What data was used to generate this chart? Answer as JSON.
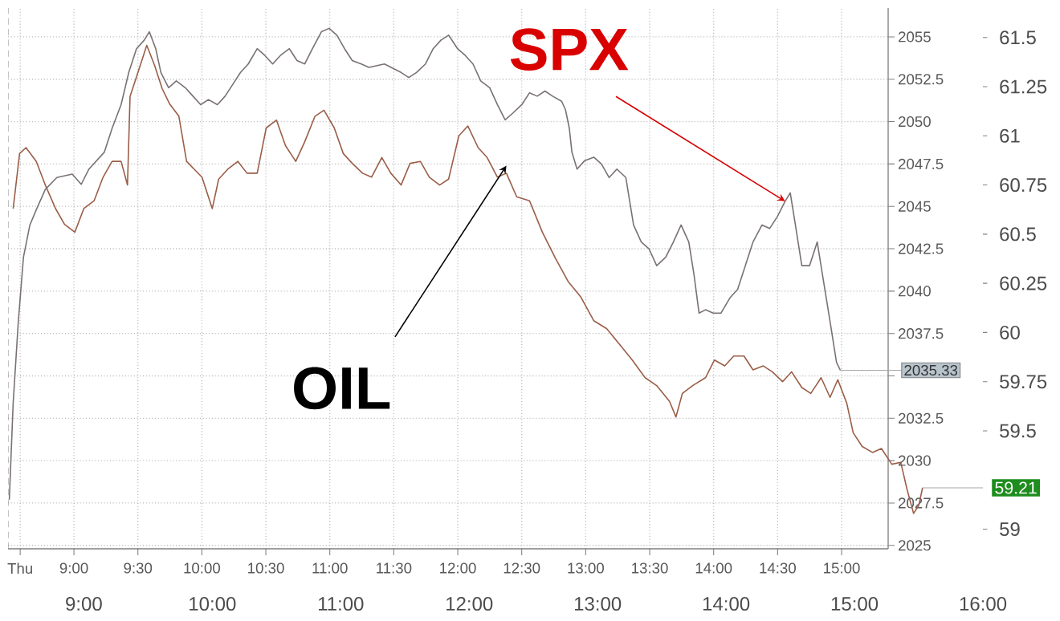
{
  "chart_data": {
    "type": "line",
    "xlim": [
      8.41,
      16.0
    ],
    "xticks": [
      {
        "value": 9,
        "label": "9:00"
      },
      {
        "value": 10,
        "label": "10:00"
      },
      {
        "value": 11,
        "label": "11:00"
      },
      {
        "value": 12,
        "label": "12:00"
      },
      {
        "value": 13,
        "label": "13:00"
      },
      {
        "value": 14,
        "label": "14:00"
      },
      {
        "value": 15,
        "label": "15:00"
      },
      {
        "value": 16,
        "label": "16:00"
      }
    ],
    "x2lim": [
      8.485,
      15.364
    ],
    "x2ticks": [
      {
        "value": 8.58,
        "label": "Thu"
      },
      {
        "value": 9,
        "label": "9:00"
      },
      {
        "value": 9.5,
        "label": "9:30"
      },
      {
        "value": 10,
        "label": "10:00"
      },
      {
        "value": 10.5,
        "label": "10:30"
      },
      {
        "value": 11,
        "label": "11:00"
      },
      {
        "value": 11.5,
        "label": "11:30"
      },
      {
        "value": 12,
        "label": "12:00"
      },
      {
        "value": 12.5,
        "label": "12:30"
      },
      {
        "value": 13,
        "label": "13:00"
      },
      {
        "value": 13.5,
        "label": "13:30"
      },
      {
        "value": 14,
        "label": "14:00"
      },
      {
        "value": 14.5,
        "label": "14:30"
      },
      {
        "value": 15,
        "label": "15:00"
      }
    ],
    "ylim": [
      2024.8,
      2056.7
    ],
    "yticks": [
      2025,
      2027.5,
      2030,
      2032.5,
      {
        "value": 2035,
        "label": null
      },
      2037.5,
      2040,
      2042.5,
      2045,
      2047.5,
      2050,
      2052.5,
      2055
    ],
    "y2lim": [
      58.9,
      61.65
    ],
    "y2ticks": [
      59,
      59.5,
      59.75,
      60,
      60.25,
      60.5,
      60.75,
      61,
      61.25,
      61.5
    ],
    "grid": true,
    "series": [
      {
        "color": "#7a7272",
        "x": [
          8.42,
          8.45,
          8.49,
          8.53,
          8.58,
          8.63,
          8.7,
          8.79,
          8.91,
          8.98,
          9.04,
          9.1,
          9.16,
          9.22,
          9.29,
          9.35,
          9.41,
          9.47,
          9.51,
          9.56,
          9.6,
          9.66,
          9.72,
          9.79,
          9.85,
          9.91,
          9.97,
          10.04,
          10.1,
          10.16,
          10.22,
          10.28,
          10.35,
          10.41,
          10.47,
          10.53,
          10.6,
          10.66,
          10.72,
          10.78,
          10.85,
          10.91,
          10.97,
          11.03,
          11.09,
          11.16,
          11.22,
          11.34,
          11.47,
          11.53,
          11.59,
          11.66,
          11.72,
          11.78,
          11.84,
          11.91,
          11.97,
          12.03,
          12.09,
          12.16,
          12.22,
          12.28,
          12.34,
          12.41,
          12.47,
          12.53,
          12.59,
          12.65,
          12.72,
          12.75,
          12.78,
          12.8,
          12.84,
          12.9,
          12.97,
          13.03,
          13.09,
          13.15,
          13.22,
          13.28,
          13.34,
          13.4,
          13.46,
          13.53,
          13.59,
          13.65,
          13.71,
          13.75,
          13.79,
          13.84,
          13.9,
          13.96,
          14.03,
          14.09,
          14.15,
          14.21,
          14.28,
          14.34,
          14.4,
          14.46,
          14.5,
          14.54,
          14.59,
          14.65,
          14.71,
          14.75,
          14.81,
          14.86,
          14.89
        ],
        "values": [
          2027.7,
          2033.4,
          2038.2,
          2042.0,
          2043.9,
          2044.8,
          2046.0,
          2046.7,
          2046.9,
          2046.3,
          2047.2,
          2047.7,
          2048.2,
          2049.6,
          2051.0,
          2052.9,
          2054.3,
          2054.8,
          2055.3,
          2054.3,
          2052.9,
          2052.0,
          2052.4,
          2052.0,
          2051.5,
          2051.0,
          2051.3,
          2051.0,
          2051.5,
          2052.2,
          2052.9,
          2053.4,
          2054.3,
          2053.9,
          2053.4,
          2053.9,
          2054.3,
          2053.6,
          2053.4,
          2054.3,
          2055.3,
          2055.5,
          2055.1,
          2054.3,
          2053.6,
          2053.4,
          2053.2,
          2053.4,
          2052.9,
          2052.6,
          2052.9,
          2053.4,
          2054.3,
          2054.8,
          2055.1,
          2054.3,
          2053.9,
          2053.4,
          2052.4,
          2052.0,
          2051.0,
          2050.1,
          2050.5,
          2051.0,
          2051.7,
          2051.5,
          2051.8,
          2051.5,
          2051.2,
          2050.7,
          2049.6,
          2048.2,
          2047.2,
          2047.7,
          2047.9,
          2047.5,
          2046.7,
          2047.2,
          2046.7,
          2043.9,
          2042.9,
          2042.5,
          2041.5,
          2042.0,
          2042.9,
          2043.9,
          2042.9,
          2041.0,
          2038.7,
          2038.9,
          2038.7,
          2038.7,
          2039.6,
          2040.1,
          2041.5,
          2042.9,
          2043.9,
          2043.7,
          2044.4,
          2045.3,
          2045.8,
          2043.9,
          2041.5,
          2041.5,
          2042.9,
          2041.0,
          2038.2,
          2035.8,
          2035.33
        ],
        "value_labels": [
          null,
          null,
          null,
          null,
          null,
          null,
          null,
          null,
          null,
          null,
          null,
          null,
          null,
          null,
          null,
          null,
          null,
          null,
          null,
          null,
          null,
          null,
          null,
          null,
          null,
          null,
          null,
          null,
          null,
          null,
          null,
          null,
          null,
          null,
          null,
          null,
          null,
          null,
          null,
          null,
          null,
          null,
          null,
          null,
          null,
          null,
          null,
          null,
          null,
          null,
          null,
          null,
          null,
          null,
          null,
          null,
          null,
          null,
          null,
          null,
          null,
          null,
          null,
          null,
          null,
          null,
          null,
          null,
          null,
          null,
          null,
          null,
          null,
          null,
          null,
          null,
          null,
          null,
          null,
          null,
          null,
          null,
          null,
          null,
          null,
          null,
          null,
          null,
          null,
          null,
          null,
          null,
          null,
          null,
          null,
          null,
          null,
          null,
          null,
          null,
          null,
          null,
          null,
          null,
          null,
          null,
          null,
          null,
          "2035.33"
        ]
      },
      {
        "color": "#9a5e48",
        "axis": "y2",
        "x": [
          8.45,
          8.5,
          8.55,
          8.63,
          8.7,
          8.78,
          8.85,
          8.93,
          9.0,
          9.08,
          9.15,
          9.22,
          9.29,
          9.34,
          9.36,
          9.42,
          9.49,
          9.55,
          9.61,
          9.67,
          9.74,
          9.8,
          9.86,
          9.92,
          10.0,
          10.05,
          10.12,
          10.2,
          10.27,
          10.35,
          10.42,
          10.5,
          10.57,
          10.65,
          10.72,
          10.8,
          10.87,
          10.95,
          11.02,
          11.09,
          11.17,
          11.24,
          11.32,
          11.39,
          11.47,
          11.54,
          11.62,
          11.69,
          11.77,
          11.84,
          11.92,
          11.99,
          12.07,
          12.14,
          12.22,
          12.29,
          12.37,
          12.47,
          12.57,
          12.67,
          12.77,
          12.87,
          12.97,
          13.07,
          13.17,
          13.27,
          13.37,
          13.46,
          13.56,
          13.61,
          13.66,
          13.74,
          13.84,
          13.91,
          13.99,
          14.06,
          14.14,
          14.21,
          14.29,
          14.36,
          14.44,
          14.51,
          14.59,
          14.66,
          14.74,
          14.81,
          14.87,
          14.94,
          14.99,
          15.06,
          15.14,
          15.21,
          15.29,
          15.36,
          15.41,
          15.46,
          15.5,
          15.53
        ],
        "values": [
          60.63,
          60.91,
          60.94,
          60.87,
          60.75,
          60.63,
          60.55,
          60.51,
          60.63,
          60.67,
          60.79,
          60.87,
          60.87,
          60.75,
          61.2,
          61.32,
          61.46,
          61.36,
          61.24,
          61.16,
          61.1,
          60.87,
          60.83,
          60.79,
          60.63,
          60.78,
          60.83,
          60.87,
          60.81,
          60.81,
          61.04,
          61.08,
          60.95,
          60.87,
          60.97,
          61.1,
          61.13,
          61.04,
          60.91,
          60.86,
          60.81,
          60.79,
          60.89,
          60.81,
          60.75,
          60.86,
          60.87,
          60.79,
          60.75,
          60.78,
          61.0,
          61.05,
          60.94,
          60.89,
          60.79,
          60.81,
          60.69,
          60.67,
          60.51,
          60.38,
          60.26,
          60.18,
          60.06,
          60.02,
          59.94,
          59.86,
          59.77,
          59.73,
          59.65,
          59.57,
          59.69,
          59.73,
          59.77,
          59.86,
          59.83,
          59.88,
          59.88,
          59.81,
          59.83,
          59.8,
          59.75,
          59.8,
          59.72,
          59.69,
          59.77,
          59.67,
          59.76,
          59.64,
          59.49,
          59.42,
          59.39,
          59.41,
          59.33,
          59.34,
          59.2,
          59.08,
          59.12,
          59.21
        ],
        "value_labels": [
          null,
          null,
          null,
          null,
          null,
          null,
          null,
          null,
          null,
          null,
          null,
          null,
          null,
          null,
          null,
          null,
          null,
          null,
          null,
          null,
          null,
          null,
          null,
          null,
          null,
          null,
          null,
          null,
          null,
          null,
          null,
          null,
          null,
          null,
          null,
          null,
          null,
          null,
          null,
          null,
          null,
          null,
          null,
          null,
          null,
          null,
          null,
          null,
          null,
          null,
          null,
          null,
          null,
          null,
          null,
          null,
          null,
          null,
          null,
          null,
          null,
          null,
          null,
          null,
          null,
          null,
          null,
          null,
          null,
          null,
          null,
          null,
          null,
          null,
          null,
          null,
          null,
          null,
          null,
          null,
          null,
          null,
          null,
          null,
          null,
          null,
          null,
          null,
          null,
          null,
          null,
          null,
          null,
          null,
          null,
          null,
          null,
          "59.21"
        ]
      }
    ],
    "annotations": [
      {
        "text": "SPX",
        "x": 14.46,
        "y": 2045.3
      },
      {
        "text": "OIL",
        "x": 12.29,
        "y": 2047.4
      }
    ]
  }
}
